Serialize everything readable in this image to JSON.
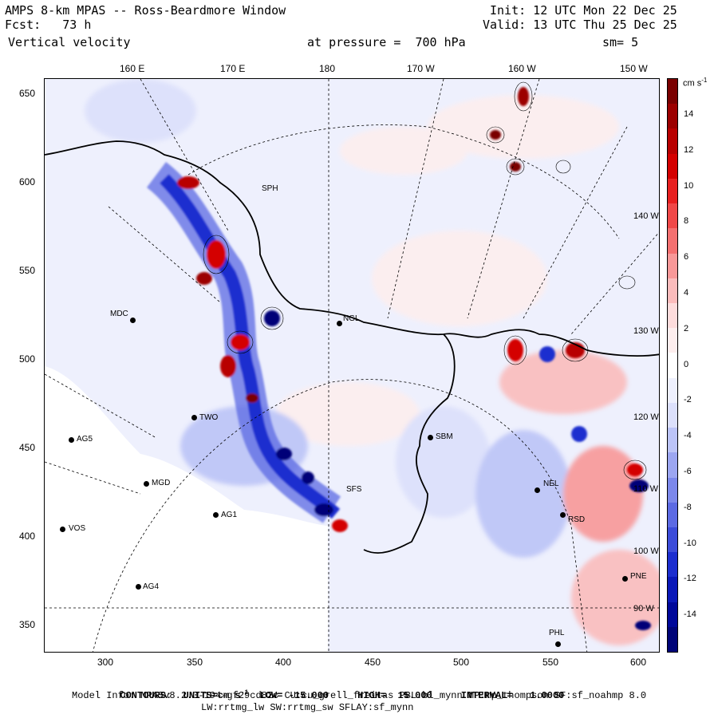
{
  "header": {
    "line1_left": "AMPS 8-km MPAS -- Ross-Beardmore Window",
    "line2_left": "Fcst:   73 h",
    "line3_left": "Vertical velocity",
    "line1_right": "Init: 12 UTC Mon 22 Dec 25",
    "line2_right": "Valid: 13 UTC Thu 25 Dec 25",
    "pressure": "at pressure =  700 hPa",
    "smooth": "sm= 5"
  },
  "top_lon_labels": [
    "160 E",
    "170 E",
    "180",
    "170 W",
    "160 W",
    "150 W"
  ],
  "y_ticks": [
    "650",
    "600",
    "550",
    "500",
    "450",
    "400",
    "350"
  ],
  "x_ticks": [
    "300",
    "350",
    "400",
    "450",
    "500",
    "550",
    "600"
  ],
  "colorbar": {
    "units": "cm s",
    "units_sup": "-1",
    "labels": [
      "14",
      "12",
      "10",
      "8",
      "6",
      "4",
      "2",
      "0",
      "-2",
      "-4",
      "-6",
      "-8",
      "-10",
      "-12",
      "-14"
    ],
    "colors": [
      "#7a0000",
      "#9c0000",
      "#b80000",
      "#d40000",
      "#e82020",
      "#f04848",
      "#f47070",
      "#f89898",
      "#fbbcbc",
      "#fddcdc",
      "#fdeeee",
      "#ffffff",
      "#eef0fd",
      "#dce0fb",
      "#bcc4f7",
      "#9ca6f1",
      "#7c88eb",
      "#5c6ae3",
      "#3c4cd9",
      "#1c2ecf",
      "#0a18b8",
      "#00089a",
      "#000478"
    ]
  },
  "edge_labels": [
    "140 W",
    "130 W",
    "120 W",
    "110 W",
    "100 W",
    "90 W"
  ],
  "stations": [
    {
      "name": "MDC"
    },
    {
      "name": "NGL"
    },
    {
      "name": "AG5"
    },
    {
      "name": "TWO"
    },
    {
      "name": "SBM"
    },
    {
      "name": "MGD"
    },
    {
      "name": "AG1"
    },
    {
      "name": "SFS"
    },
    {
      "name": "VOS"
    },
    {
      "name": "AG4"
    },
    {
      "name": "NEL"
    },
    {
      "name": "RSD"
    },
    {
      "name": "PNE"
    },
    {
      "name": "PHL"
    },
    {
      "name": "SPH"
    }
  ],
  "footer": {
    "contours_label": "CONTOURS:",
    "units_label": "UNITS=cm s",
    "units_sup": "-1",
    "low": "LOW= -15.000",
    "high": "HIGH=  15.000",
    "interval": "INTERVAL=   1.0000",
    "model_line": "Model Info: MPASv8.2.3-194-gf29cd82c CU:cu_grell_freitas PBL:bl_mynn MP:mp_thompson SF:sf_noahmp 8.0",
    "model_line2": "LW:rrtmg_lw SW:rrtmg_sw SFLAY:sf_mynn"
  }
}
